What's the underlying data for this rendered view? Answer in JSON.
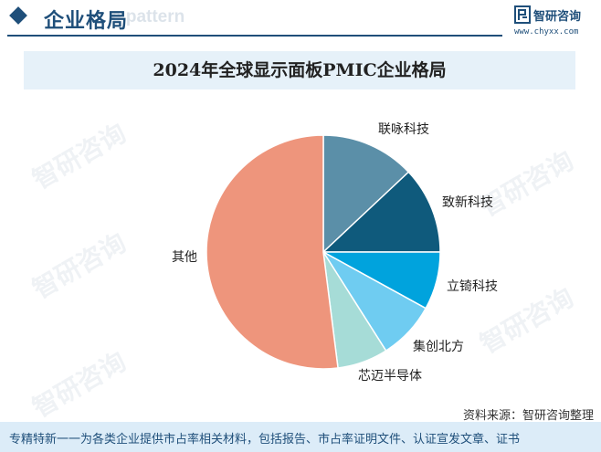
{
  "header": {
    "section_title": "企业格局",
    "section_watermark": "e pattern",
    "logo_name": "智研咨询",
    "logo_url": "www.chyxx.com"
  },
  "watermark_text": "智研咨询",
  "chart_data": {
    "type": "pie",
    "title": "2024年全球显示面板PMIC企业格局",
    "categories": [
      "联咏科技",
      "致新科技",
      "立锜科技",
      "集创北方",
      "芯迈半导体",
      "其他"
    ],
    "values": [
      13,
      12,
      8,
      8,
      7,
      52
    ],
    "colors": [
      "#5b8fa8",
      "#0f5a7c",
      "#00a3dd",
      "#6fccf1",
      "#a6dcd7",
      "#ee957c"
    ],
    "legend": "none"
  },
  "source": "资料来源：智研咨询整理",
  "footer_text": "专精特新一一为各类企业提供市占率相关材料，包括报告、市占率证明文件、认证宣发文章、证书"
}
